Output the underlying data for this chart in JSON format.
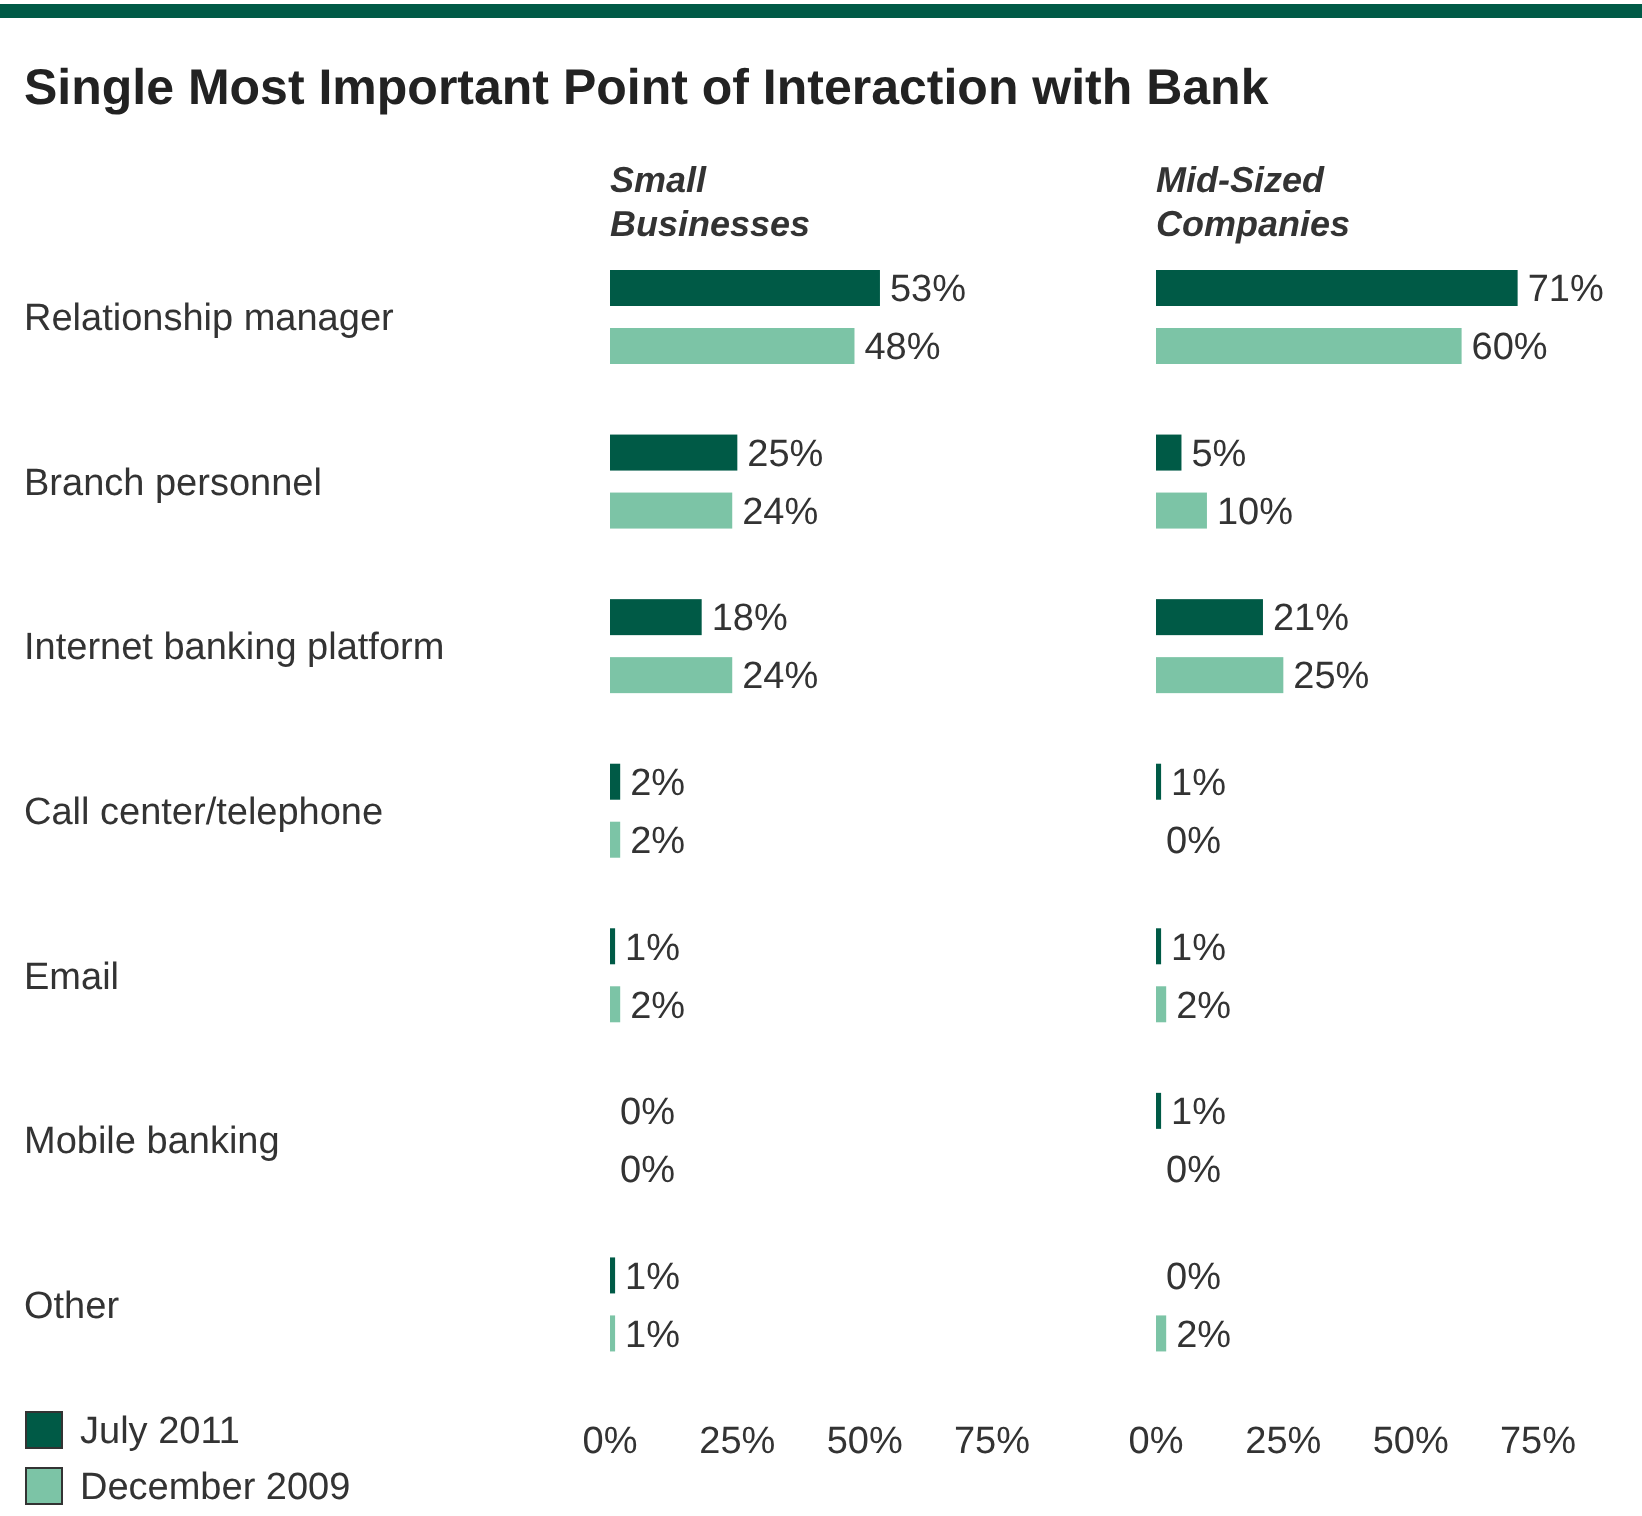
{
  "chart_data": [
    {
      "type": "bar",
      "orientation": "horizontal",
      "title": "Single Most Important Point of Interaction with Bank",
      "subtitle": "Small Businesses",
      "categories": [
        "Relationship manager",
        "Branch personnel",
        "Internet banking platform",
        "Call center/telephone",
        "Email",
        "Mobile banking",
        "Other"
      ],
      "series": [
        {
          "name": "July 2011",
          "color": "#005a46",
          "values": [
            53,
            25,
            18,
            2,
            1,
            0,
            1
          ],
          "value_labels": [
            "53%",
            "25%",
            "18%",
            "2%",
            "1%",
            "0%",
            "1%"
          ]
        },
        {
          "name": "December 2009",
          "color": "#7cc4a6",
          "values": [
            48,
            24,
            24,
            2,
            2,
            0,
            1
          ],
          "value_labels": [
            "48%",
            "24%",
            "24%",
            "2%",
            "2%",
            "0%",
            "1%"
          ]
        }
      ],
      "xlim": [
        0,
        75
      ],
      "xticks": [
        {
          "value": 0,
          "label": "0%"
        },
        {
          "value": 25,
          "label": "25%"
        },
        {
          "value": 50,
          "label": "50%"
        },
        {
          "value": 75,
          "label": "75%"
        }
      ],
      "legend": "bottom left",
      "grid": false
    },
    {
      "type": "bar",
      "orientation": "horizontal",
      "subtitle": "Mid-Sized Companies",
      "categories": [
        null,
        null,
        null,
        null,
        null,
        null,
        null
      ],
      "series": [
        {
          "color": "#005a46",
          "values": [
            71,
            5,
            21,
            1,
            1,
            1,
            0
          ],
          "value_labels": [
            "71%",
            "5%",
            "21%",
            "1%",
            "1%",
            "1%",
            "0%"
          ]
        },
        {
          "color": "#7cc4a6",
          "values": [
            60,
            10,
            25,
            0,
            2,
            0,
            2
          ],
          "value_labels": [
            "60%",
            "10%",
            "25%",
            "0%",
            "2%",
            "0%",
            "2%"
          ]
        }
      ],
      "xlim": [
        0,
        75
      ],
      "xticks": [
        {
          "value": 0,
          "label": "0%"
        },
        {
          "value": 25,
          "label": "25%"
        },
        {
          "value": 50,
          "label": "50%"
        },
        {
          "value": 75,
          "label": "75%"
        }
      ],
      "tick_labels": "x",
      "grid": false
    }
  ]
}
